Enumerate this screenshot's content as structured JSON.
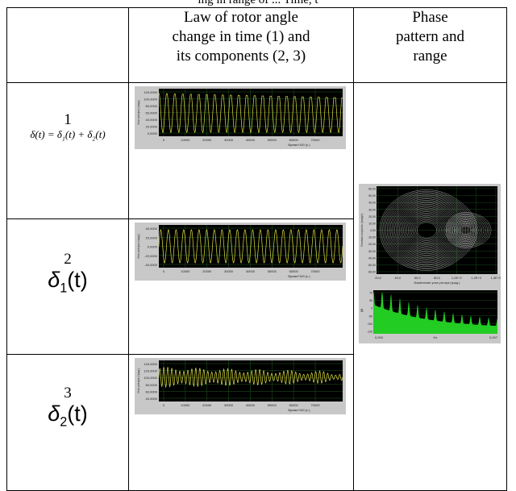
{
  "caption_fragment": "ing in range of ... Time, t",
  "table": {
    "headers": {
      "col1": "",
      "col2_lines": [
        "Law of rotor angle",
        "change in time (1) and",
        "its components (2, 3)"
      ],
      "col3_lines": [
        "Phase",
        "pattern and",
        "range"
      ]
    },
    "rows": [
      {
        "number": "1",
        "formula_parts": {
          "lhs": "δ(t) = ",
          "a": "δ",
          "a_sub": "1",
          "mid": "(t) + ",
          "b": "δ",
          "b_sub": "2",
          "end": "(t)"
        },
        "plot": {
          "ylabel": "Угол ротора (град.)",
          "yticks": [
            "120,0000",
            "100,0000",
            "80,0000",
            "60,0000",
            "40,0000",
            "20,0000",
            "0,0000"
          ],
          "xticks": [
            "0",
            "10000",
            "20000",
            "30000",
            "40000",
            "50000",
            "60000",
            "70000"
          ],
          "xlabel": "Время*100 (с.)"
        }
      },
      {
        "number": "2",
        "formula_parts": {
          "sym": "δ",
          "sub": "1",
          "end": "(t)"
        },
        "plot": {
          "ylabel": "Угол ротора (град.)",
          "yticks": [
            "40,0000",
            "20,0000",
            "0,0000",
            "-20,0000",
            "-40,0000"
          ],
          "xticks": [
            "0",
            "10000",
            "20000",
            "30000",
            "40000",
            "50000",
            "60000",
            "70000"
          ],
          "xlabel": "Время*100 (с.)"
        }
      },
      {
        "number": "3",
        "formula_parts": {
          "sym": "δ",
          "sub": "2",
          "end": "(t)"
        },
        "plot": {
          "ylabel": "Угол ротора (град.)",
          "yticks": [
            "140,0000",
            "120,0000",
            "100,0000",
            "80,0000",
            "60,0000",
            "40,0000"
          ],
          "xticks": [
            "0",
            "10000",
            "20000",
            "30000",
            "40000",
            "50000",
            "60000",
            "70000"
          ],
          "xlabel": "Время*100 (с.)"
        }
      }
    ],
    "phase_plot": {
      "ylabel": "Угловая скорость (град/с)",
      "yticks": [
        "60,00",
        "50,00",
        "40,00",
        "30,00",
        "20,00",
        "10,00",
        "0,00",
        "-10,00",
        "-20,00",
        "-30,00",
        "-40,00",
        "-50,00",
        "-60,00"
      ],
      "xticks": [
        "20,0",
        "40,0",
        "60,0",
        "80,0",
        "1,0E+2",
        "1,2E+2",
        "1,4E+2"
      ],
      "xlabel": "Изменение угла ротора (град.)"
    },
    "spectrum_plot": {
      "ylabel": "Б",
      "yticks": [
        "70",
        "50",
        "0",
        "-50",
        "-100",
        "-130"
      ],
      "xticks": [
        "0,000",
        "Hz",
        "0,007"
      ]
    }
  },
  "colors": {
    "plot_bg": "#000000",
    "trace_yellow": "#e0e040",
    "grid_green": "#1f5a1f",
    "spectrum_fill": "#22cc22",
    "phase_trace": "#e8e8e8",
    "panel_gray": "#c8c8c8"
  }
}
